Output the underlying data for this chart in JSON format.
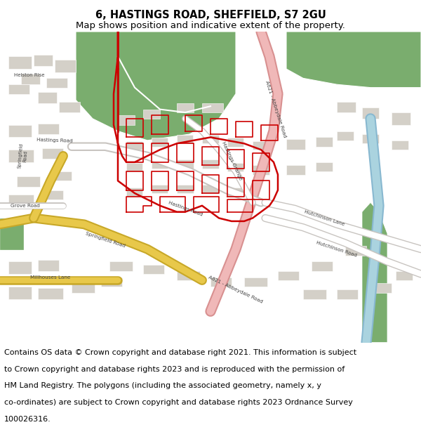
{
  "title": "6, HASTINGS ROAD, SHEFFIELD, S7 2GU",
  "subtitle": "Map shows position and indicative extent of the property.",
  "footer_lines": [
    "Contains OS data © Crown copyright and database right 2021. This information is subject",
    "to Crown copyright and database rights 2023 and is reproduced with the permission of",
    "HM Land Registry. The polygons (including the associated geometry, namely x, y",
    "co-ordinates) are subject to Crown copyright and database rights 2023 Ordnance Survey",
    "100026316."
  ],
  "title_fontsize": 10.5,
  "subtitle_fontsize": 9.5,
  "footer_fontsize": 8.0,
  "fig_width": 6.0,
  "fig_height": 6.25,
  "bg_color": "#ffffff",
  "title_color": "#000000",
  "footer_color": "#000000",
  "map_bg": "#f0ede8",
  "green_area_color": "#7aad6e",
  "road_yellow": "#e8c84a",
  "road_pink": "#f0b8b8",
  "building_color": "#d4d0c8",
  "water_color": "#aad3df",
  "water_green": "#6aaa5e",
  "red_outline": "#cc0000",
  "label_color": "#444444"
}
